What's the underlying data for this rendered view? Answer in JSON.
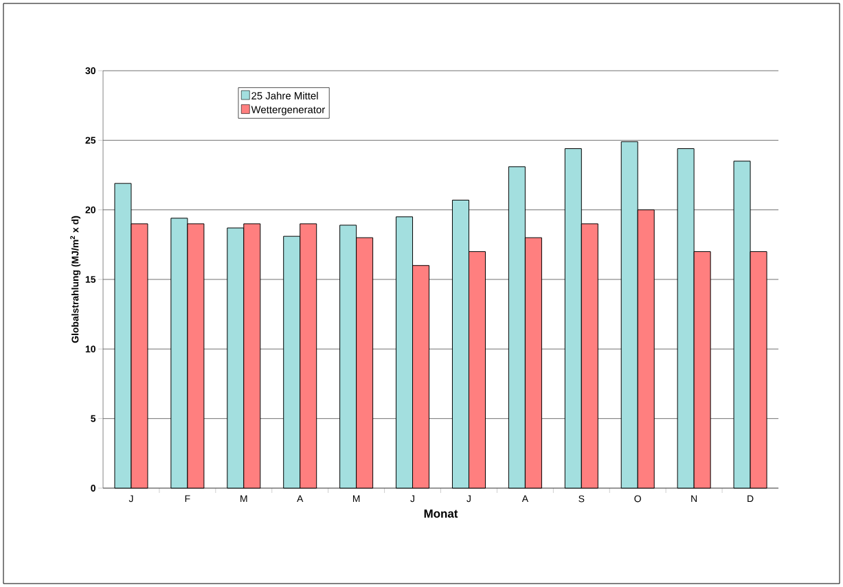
{
  "chart_data": {
    "type": "bar",
    "xlabel": "Monat",
    "ylabel": "Globalstrahlung (MJ/m$^{2}$ x d)",
    "categories": [
      "J",
      "F",
      "M",
      "A",
      "M",
      "J",
      "J",
      "A",
      "S",
      "O",
      "N",
      "D"
    ],
    "series": [
      {
        "name": "25 Jahre Mittel",
        "color": "#a3dfdf",
        "values": [
          21.9,
          19.4,
          18.7,
          18.1,
          18.9,
          19.5,
          20.7,
          23.1,
          24.4,
          24.9,
          24.4,
          23.5
        ]
      },
      {
        "name": "Wettergenerator",
        "color": "#ff7f7f",
        "values": [
          19,
          19,
          19,
          19,
          18,
          16,
          17,
          18,
          19,
          20,
          17,
          17
        ]
      }
    ],
    "ylim": [
      0,
      30
    ],
    "yticks": [
      0,
      5,
      10,
      15,
      20,
      25,
      30
    ],
    "grid": "y",
    "legend": "top left"
  }
}
